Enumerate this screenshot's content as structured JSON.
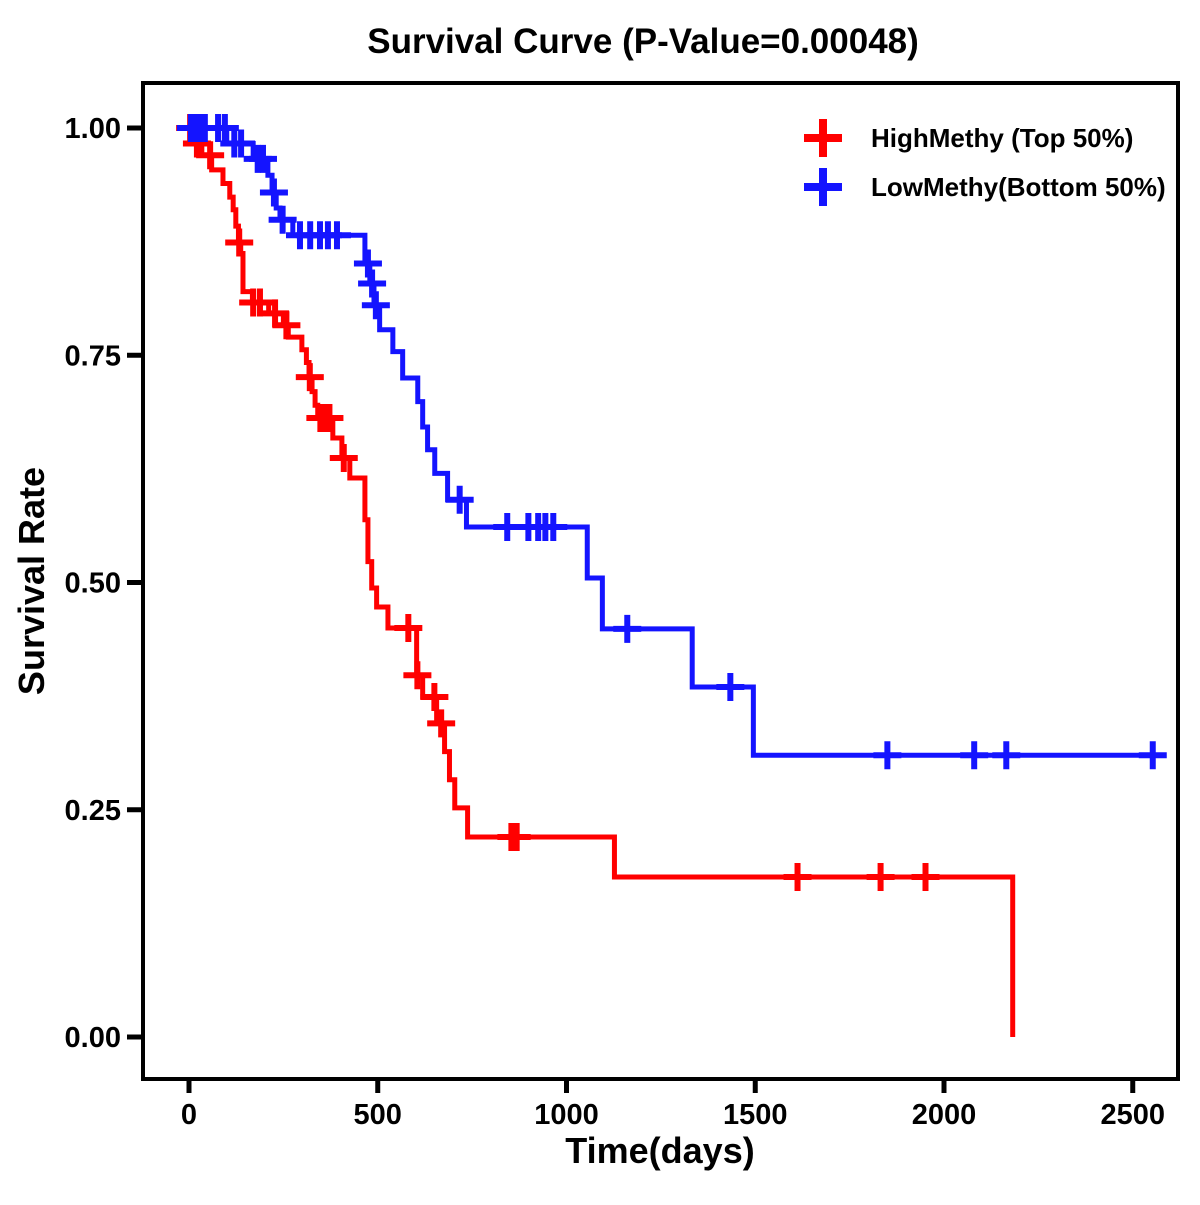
{
  "title": "Survival Curve (P-Value=0.00048)",
  "axes": {
    "x": {
      "label": "Time(days)",
      "ticks": [
        {
          "v": 0,
          "label": "0"
        },
        {
          "v": 500,
          "label": "500"
        },
        {
          "v": 1000,
          "label": "1000"
        },
        {
          "v": 1500,
          "label": "1500"
        },
        {
          "v": 2000,
          "label": "2000"
        },
        {
          "v": 2500,
          "label": "2500"
        }
      ]
    },
    "y": {
      "label": "Survival Rate",
      "ticks": [
        {
          "v": 0.0,
          "label": "0.00"
        },
        {
          "v": 0.25,
          "label": "0.25"
        },
        {
          "v": 0.5,
          "label": "0.50"
        },
        {
          "v": 0.75,
          "label": "0.75"
        },
        {
          "v": 1.0,
          "label": "1.00"
        }
      ]
    }
  },
  "legend": {
    "position": "top-right-inside",
    "items": [
      {
        "label": "HighMethy (Top 50%)",
        "color": "#FF0000",
        "marker": "plus"
      },
      {
        "label": "LowMethy(Bottom 50%)",
        "color": "#1414FF",
        "marker": "plus"
      }
    ]
  },
  "chart_data": {
    "type": "line",
    "subtype": "kaplan-meier-step-curve",
    "title": "Survival Curve (P-Value=0.00048)",
    "p_value": "0.00048",
    "xlabel": "Time(days)",
    "ylabel": "Survival Rate",
    "xlim": [
      0,
      2600
    ],
    "ylim": [
      0,
      1
    ],
    "grid": false,
    "legend_position": "top-right",
    "series": [
      {
        "name": "HighMethy (Top 50%)",
        "color": "#FF0000",
        "points": [
          [
            0,
            1.0
          ],
          [
            11,
            0.983
          ],
          [
            34,
            0.97
          ],
          [
            60,
            0.954
          ],
          [
            90,
            0.939
          ],
          [
            108,
            0.924
          ],
          [
            117,
            0.91
          ],
          [
            124,
            0.892
          ],
          [
            131,
            0.874
          ],
          [
            137,
            0.862
          ],
          [
            143,
            0.82
          ],
          [
            168,
            0.808
          ],
          [
            211,
            0.796
          ],
          [
            250,
            0.783
          ],
          [
            263,
            0.77
          ],
          [
            299,
            0.756
          ],
          [
            311,
            0.742
          ],
          [
            318,
            0.726
          ],
          [
            326,
            0.71
          ],
          [
            334,
            0.695
          ],
          [
            341,
            0.681
          ],
          [
            381,
            0.659
          ],
          [
            405,
            0.637
          ],
          [
            426,
            0.615
          ],
          [
            466,
            0.569
          ],
          [
            474,
            0.523
          ],
          [
            484,
            0.494
          ],
          [
            497,
            0.473
          ],
          [
            527,
            0.45
          ],
          [
            603,
            0.398
          ],
          [
            619,
            0.374
          ],
          [
            656,
            0.345
          ],
          [
            677,
            0.314
          ],
          [
            690,
            0.283
          ],
          [
            704,
            0.252
          ],
          [
            738,
            0.22
          ],
          [
            1127,
            0.176
          ],
          [
            2182,
            0.0
          ]
        ],
        "end_time": 2182,
        "censor_times": [
          3,
          21,
          56,
          133,
          170,
          188,
          228,
          258,
          320,
          348,
          360,
          372,
          410,
          581,
          605,
          650,
          668,
          854,
          868,
          1612,
          1832,
          1951
        ]
      },
      {
        "name": "LowMethy(Bottom 50%)",
        "color": "#1414FF",
        "points": [
          [
            0,
            1.0
          ],
          [
            100,
            0.983
          ],
          [
            170,
            0.966
          ],
          [
            209,
            0.948
          ],
          [
            220,
            0.929
          ],
          [
            231,
            0.912
          ],
          [
            241,
            0.899
          ],
          [
            275,
            0.882
          ],
          [
            466,
            0.851
          ],
          [
            479,
            0.829
          ],
          [
            490,
            0.805
          ],
          [
            505,
            0.778
          ],
          [
            540,
            0.754
          ],
          [
            566,
            0.725
          ],
          [
            606,
            0.699
          ],
          [
            619,
            0.671
          ],
          [
            632,
            0.646
          ],
          [
            651,
            0.62
          ],
          [
            685,
            0.591
          ],
          [
            735,
            0.561
          ],
          [
            1055,
            0.505
          ],
          [
            1095,
            0.449
          ],
          [
            1333,
            0.385
          ],
          [
            1495,
            0.31
          ]
        ],
        "end_time": 2582,
        "censor_times": [
          5,
          15,
          28,
          42,
          77,
          95,
          120,
          138,
          182,
          196,
          225,
          248,
          294,
          321,
          347,
          368,
          392,
          474,
          485,
          495,
          717,
          843,
          899,
          925,
          944,
          965,
          1161,
          1434,
          1850,
          2080,
          2165,
          2553
        ]
      }
    ]
  }
}
